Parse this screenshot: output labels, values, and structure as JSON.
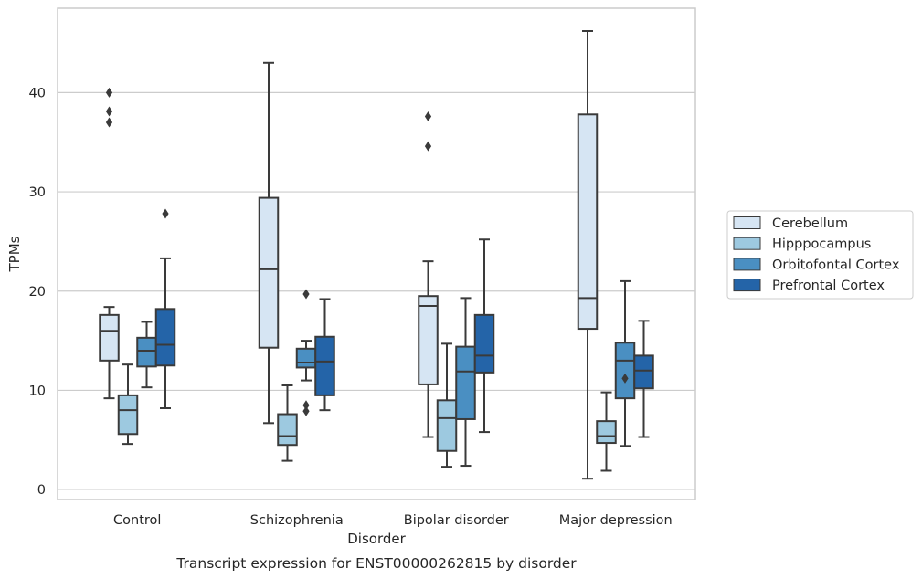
{
  "caption": "Transcript expression for ENST00000262815 by disorder",
  "chart_data": {
    "type": "box",
    "xlabel": "Disorder",
    "ylabel": "TPMs",
    "ylim": [
      -1,
      48.5
    ],
    "yticks": [
      0,
      10,
      20,
      30,
      40
    ],
    "grid": "horizontal",
    "legend_position": "right",
    "categories": [
      "Control",
      "Schizophrenia",
      "Bipolar disorder",
      "Major depression"
    ],
    "series": [
      {
        "name": "Cerebellum",
        "color": "#d6e5f3",
        "boxes": [
          {
            "whisker_low": 9.2,
            "q1": 13.0,
            "median": 16.0,
            "q3": 17.6,
            "whisker_high": 18.4,
            "outliers": [
              37.0,
              38.1,
              40.0
            ]
          },
          {
            "whisker_low": 6.7,
            "q1": 14.3,
            "median": 22.2,
            "q3": 29.4,
            "whisker_high": 43.0,
            "outliers": []
          },
          {
            "whisker_low": 5.3,
            "q1": 10.6,
            "median": 18.5,
            "q3": 19.5,
            "whisker_high": 23.0,
            "outliers": [
              34.6,
              37.6
            ]
          },
          {
            "whisker_low": 1.1,
            "q1": 16.2,
            "median": 19.3,
            "q3": 37.8,
            "whisker_high": 46.2,
            "outliers": []
          }
        ]
      },
      {
        "name": "Hipppocampus",
        "color": "#9dc9e0",
        "boxes": [
          {
            "whisker_low": 4.6,
            "q1": 5.6,
            "median": 8.0,
            "q3": 9.5,
            "whisker_high": 12.6,
            "outliers": []
          },
          {
            "whisker_low": 2.9,
            "q1": 4.5,
            "median": 5.4,
            "q3": 7.6,
            "whisker_high": 10.5,
            "outliers": []
          },
          {
            "whisker_low": 2.3,
            "q1": 3.9,
            "median": 7.2,
            "q3": 9.0,
            "whisker_high": 14.7,
            "outliers": []
          },
          {
            "whisker_low": 1.9,
            "q1": 4.7,
            "median": 5.4,
            "q3": 6.9,
            "whisker_high": 9.8,
            "outliers": []
          }
        ]
      },
      {
        "name": "Orbitofontal Cortex",
        "color": "#4a8fc2",
        "boxes": [
          {
            "whisker_low": 10.3,
            "q1": 12.4,
            "median": 14.0,
            "q3": 15.3,
            "whisker_high": 16.9,
            "outliers": []
          },
          {
            "whisker_low": 11.0,
            "q1": 12.3,
            "median": 12.8,
            "q3": 14.2,
            "whisker_high": 15.0,
            "outliers": [
              7.9,
              8.5,
              19.7
            ]
          },
          {
            "whisker_low": 2.4,
            "q1": 7.1,
            "median": 11.9,
            "q3": 14.4,
            "whisker_high": 19.3,
            "outliers": []
          },
          {
            "whisker_low": 4.4,
            "q1": 9.2,
            "median": 13.0,
            "q3": 14.8,
            "whisker_high": 21.0,
            "outliers": [
              11.2
            ]
          }
        ]
      },
      {
        "name": "Prefrontal Cortex",
        "color": "#2464a8",
        "boxes": [
          {
            "whisker_low": 8.2,
            "q1": 12.5,
            "median": 14.6,
            "q3": 18.2,
            "whisker_high": 23.3,
            "outliers": [
              27.8
            ]
          },
          {
            "whisker_low": 8.0,
            "q1": 9.5,
            "median": 12.9,
            "q3": 15.4,
            "whisker_high": 19.2,
            "outliers": []
          },
          {
            "whisker_low": 5.8,
            "q1": 11.8,
            "median": 13.5,
            "q3": 17.6,
            "whisker_high": 25.2,
            "outliers": []
          },
          {
            "whisker_low": 5.3,
            "q1": 10.2,
            "median": 12.0,
            "q3": 13.5,
            "whisker_high": 17.0,
            "outliers": []
          }
        ]
      }
    ]
  }
}
